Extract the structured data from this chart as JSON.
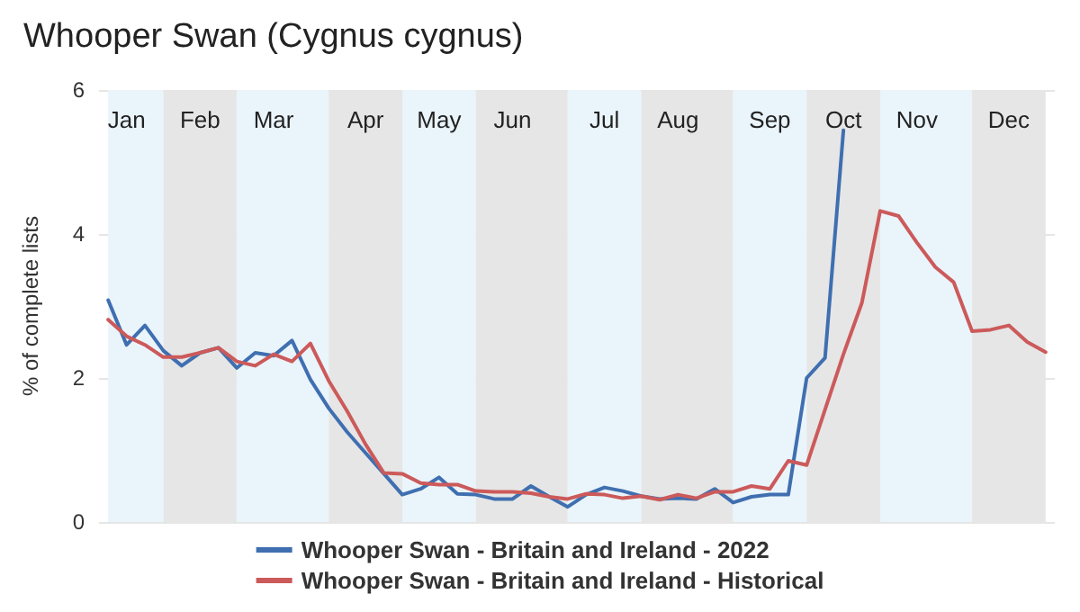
{
  "chart_data": {
    "type": "line",
    "title": "Whooper Swan (Cygnus cygnus)",
    "ylabel": "% of complete lists",
    "categories": [
      null,
      "Jan",
      null,
      null,
      null,
      "Feb",
      null,
      null,
      null,
      "Mar",
      null,
      null,
      null,
      null,
      "Apr",
      null,
      null,
      null,
      "May",
      null,
      null,
      null,
      "Jun",
      null,
      null,
      null,
      null,
      "Jul",
      null,
      null,
      null,
      "Aug",
      null,
      null,
      null,
      null,
      "Sep",
      null,
      null,
      null,
      "Oct",
      null,
      null,
      null,
      "Nov",
      null,
      null,
      null,
      null,
      "Dec",
      null,
      null
    ],
    "ylim": [
      0,
      6
    ],
    "yticks": [
      0,
      2,
      4,
      6
    ],
    "grid": "y",
    "legend": "bottom",
    "marker": "none",
    "line_style": "solid",
    "series": [
      {
        "name": "Whooper Swan - Britain and Ireland - 2022",
        "color": "#3f6fb0",
        "values": [
          3.08,
          2.46,
          2.73,
          2.38,
          2.17,
          2.35,
          2.42,
          2.14,
          2.35,
          2.31,
          2.52,
          1.98,
          1.58,
          1.25,
          0.96,
          0.67,
          0.38,
          0.46,
          0.62,
          0.39,
          0.38,
          0.32,
          0.32,
          0.5,
          0.35,
          0.21,
          0.38,
          0.48,
          0.43,
          0.36,
          0.32,
          0.33,
          0.32,
          0.46,
          0.27,
          0.35,
          0.38,
          0.38,
          2.0,
          2.28,
          5.44,
          null,
          null,
          null,
          null,
          null,
          null,
          null,
          null,
          null,
          null,
          null
        ]
      },
      {
        "name": "Whooper Swan - Britain and Ireland - Historical",
        "color": "#cc5a5a",
        "values": [
          2.81,
          2.58,
          2.46,
          2.29,
          2.29,
          2.35,
          2.42,
          2.23,
          2.17,
          2.33,
          2.23,
          2.48,
          1.96,
          1.54,
          1.08,
          0.68,
          0.67,
          0.54,
          0.52,
          0.52,
          0.43,
          0.42,
          0.42,
          0.4,
          0.35,
          0.32,
          0.39,
          0.38,
          0.33,
          0.36,
          0.31,
          0.38,
          0.33,
          0.42,
          0.42,
          0.5,
          0.46,
          0.85,
          0.79,
          1.56,
          2.33,
          3.04,
          4.32,
          4.25,
          3.88,
          3.54,
          3.33,
          2.65,
          2.67,
          2.73,
          2.5,
          2.36
        ]
      }
    ]
  }
}
